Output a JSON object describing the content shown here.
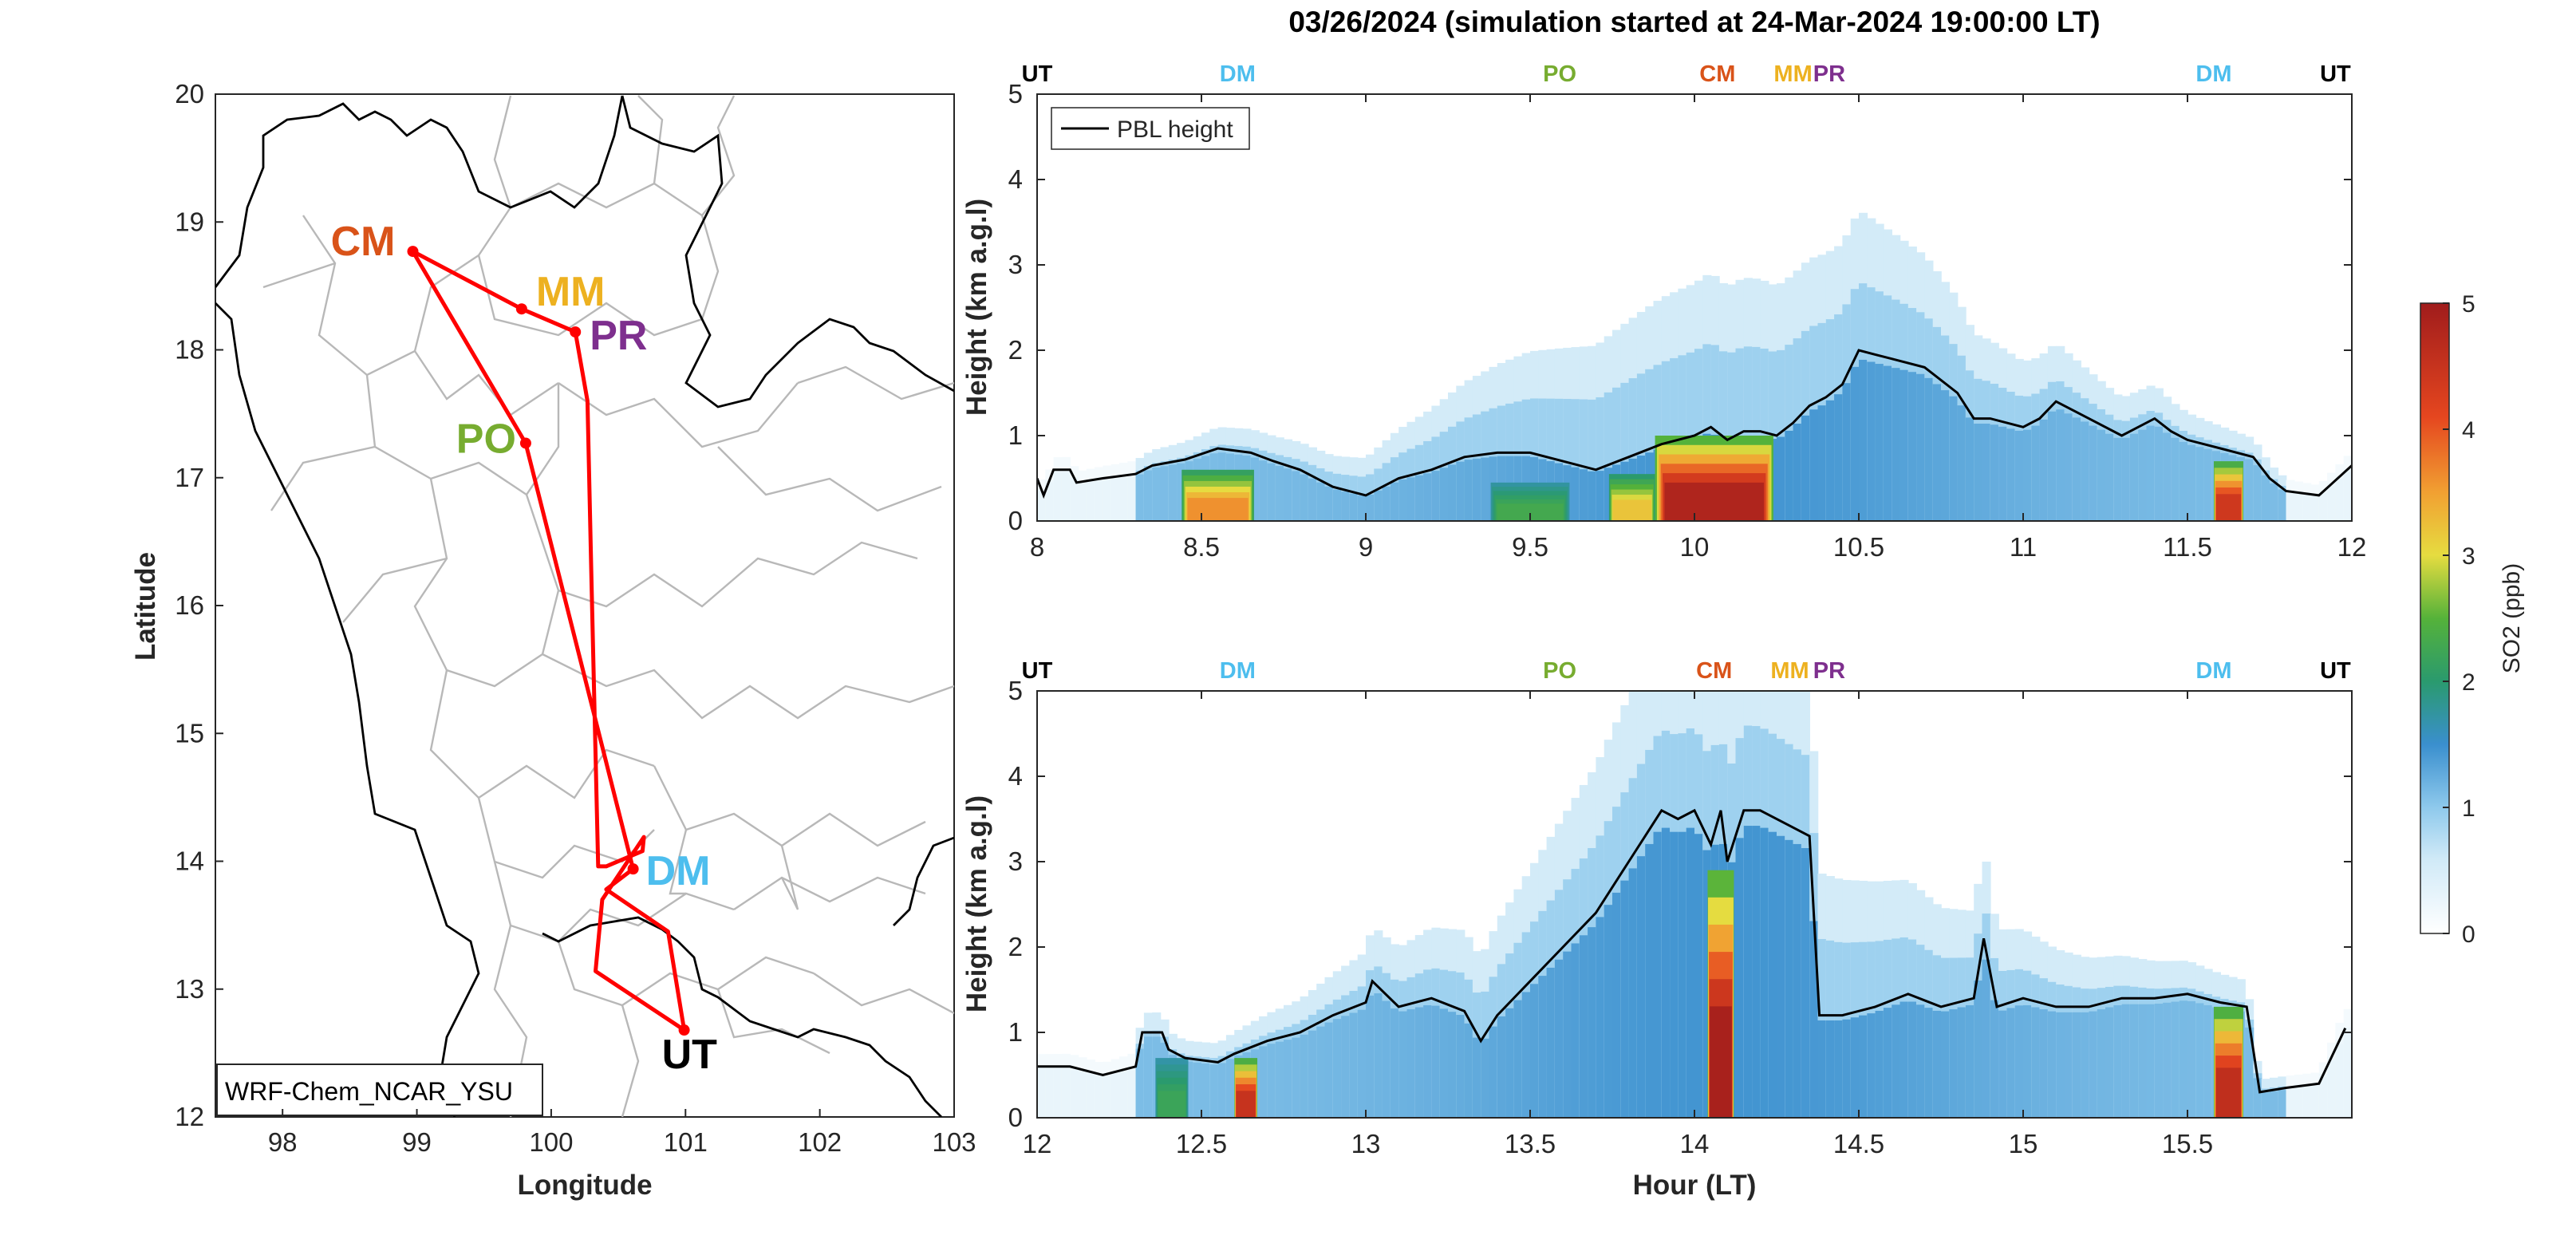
{
  "title": "03/26/2024 (simulation started at 24-Mar-2024 19:00:00 LT)",
  "colors": {
    "CM": "#D95319",
    "MM": "#EDB120",
    "PR": "#7E2F8E",
    "PO": "#77AC30",
    "DM": "#4DBEEE",
    "UT": "#000000",
    "route": "#FF0000",
    "pbl": "#000000"
  },
  "colorbar": {
    "label": "SO2 (ppb)",
    "ticks": [
      "0",
      "1",
      "2",
      "3",
      "4",
      "5"
    ],
    "range": [
      0,
      5
    ]
  },
  "chart_data": [
    {
      "type": "map",
      "model_label": "WRF-Chem_NCAR_YSU",
      "xlabel": "Longitude",
      "ylabel": "Latitude",
      "xlim": [
        97.5,
        103
      ],
      "ylim": [
        12,
        20
      ],
      "xticks": [
        "98",
        "99",
        "100",
        "101",
        "102",
        "103"
      ],
      "yticks": [
        "12",
        "13",
        "14",
        "15",
        "16",
        "17",
        "18",
        "19",
        "20"
      ],
      "stations": [
        {
          "name": "CM",
          "lon": 98.97,
          "lat": 18.77
        },
        {
          "name": "MM",
          "lon": 99.78,
          "lat": 18.32
        },
        {
          "name": "PR",
          "lon": 100.18,
          "lat": 18.14
        },
        {
          "name": "PO",
          "lon": 99.81,
          "lat": 17.27
        },
        {
          "name": "DM",
          "lon": 100.61,
          "lat": 13.94
        },
        {
          "name": "UT",
          "lon": 100.99,
          "lat": 12.68
        }
      ],
      "route": [
        [
          100.99,
          12.68
        ],
        [
          100.87,
          13.45
        ],
        [
          100.41,
          13.78
        ],
        [
          100.61,
          13.94
        ],
        [
          99.81,
          17.27
        ],
        [
          98.97,
          18.77
        ],
        [
          99.78,
          18.32
        ],
        [
          100.18,
          18.14
        ],
        [
          100.27,
          17.6
        ],
        [
          100.3,
          16.2
        ],
        [
          100.35,
          13.96
        ],
        [
          100.41,
          13.96
        ],
        [
          100.68,
          14.08
        ],
        [
          100.69,
          14.19
        ],
        [
          100.38,
          13.7
        ],
        [
          100.33,
          13.14
        ],
        [
          100.99,
          12.68
        ]
      ]
    },
    {
      "type": "heatmap",
      "panel": "top",
      "xlabel": "",
      "ylabel": "Height (km a.g.l)",
      "xlim": [
        8,
        12
      ],
      "ylim": [
        0,
        5
      ],
      "xticks": [
        "8",
        "8.5",
        "9",
        "9.5",
        "10",
        "10.5",
        "11",
        "11.5",
        "12"
      ],
      "yticks": [
        "0",
        "1",
        "2",
        "3",
        "4",
        "5"
      ],
      "legend": "PBL height",
      "station_marks": [
        {
          "name": "UT",
          "x": 8.0
        },
        {
          "name": "DM",
          "x": 8.61
        },
        {
          "name": "PO",
          "x": 9.59
        },
        {
          "name": "CM",
          "x": 10.07
        },
        {
          "name": "MM",
          "x": 10.3
        },
        {
          "name": "PR",
          "x": 10.41
        },
        {
          "name": "DM",
          "x": 11.58
        },
        {
          "name": "UT",
          "x": 11.95
        }
      ],
      "pbl": [
        [
          8,
          0.5
        ],
        [
          8.02,
          0.3
        ],
        [
          8.05,
          0.6
        ],
        [
          8.1,
          0.6
        ],
        [
          8.12,
          0.45
        ],
        [
          8.2,
          0.5
        ],
        [
          8.3,
          0.55
        ],
        [
          8.35,
          0.65
        ],
        [
          8.45,
          0.72
        ],
        [
          8.55,
          0.85
        ],
        [
          8.65,
          0.8
        ],
        [
          8.72,
          0.7
        ],
        [
          8.8,
          0.6
        ],
        [
          8.9,
          0.4
        ],
        [
          9.0,
          0.3
        ],
        [
          9.1,
          0.5
        ],
        [
          9.2,
          0.6
        ],
        [
          9.3,
          0.75
        ],
        [
          9.4,
          0.8
        ],
        [
          9.5,
          0.8
        ],
        [
          9.6,
          0.7
        ],
        [
          9.7,
          0.6
        ],
        [
          9.8,
          0.75
        ],
        [
          9.9,
          0.9
        ],
        [
          10.0,
          1.0
        ],
        [
          10.05,
          1.1
        ],
        [
          10.1,
          0.95
        ],
        [
          10.15,
          1.05
        ],
        [
          10.2,
          1.05
        ],
        [
          10.25,
          1.0
        ],
        [
          10.3,
          1.15
        ],
        [
          10.35,
          1.35
        ],
        [
          10.4,
          1.45
        ],
        [
          10.45,
          1.6
        ],
        [
          10.5,
          2.0
        ],
        [
          10.55,
          1.95
        ],
        [
          10.6,
          1.9
        ],
        [
          10.7,
          1.8
        ],
        [
          10.8,
          1.5
        ],
        [
          10.85,
          1.2
        ],
        [
          10.9,
          1.2
        ],
        [
          11.0,
          1.1
        ],
        [
          11.05,
          1.2
        ],
        [
          11.1,
          1.4
        ],
        [
          11.2,
          1.2
        ],
        [
          11.3,
          1.0
        ],
        [
          11.35,
          1.1
        ],
        [
          11.4,
          1.2
        ],
        [
          11.45,
          1.05
        ],
        [
          11.5,
          0.95
        ],
        [
          11.55,
          0.9
        ],
        [
          11.6,
          0.85
        ],
        [
          11.7,
          0.75
        ],
        [
          11.75,
          0.5
        ],
        [
          11.8,
          0.35
        ],
        [
          11.9,
          0.3
        ],
        [
          12.0,
          0.65
        ]
      ],
      "so2_features": [
        {
          "x0": 8.44,
          "x1": 8.66,
          "z0": 0,
          "z1": 0.6,
          "peak": 3.6
        },
        {
          "x0": 9.38,
          "x1": 9.62,
          "z0": 0,
          "z1": 0.45,
          "peak": 2.3
        },
        {
          "x0": 9.74,
          "x1": 9.88,
          "z0": 0,
          "z1": 0.55,
          "peak": 3.2
        },
        {
          "x0": 9.88,
          "x1": 10.24,
          "z0": 0,
          "z1": 1.0,
          "peak": 4.8
        },
        {
          "x0": 11.58,
          "x1": 11.67,
          "z0": 0,
          "z1": 0.7,
          "peak": 4.4
        }
      ]
    },
    {
      "type": "heatmap",
      "panel": "bottom",
      "xlabel": "Hour (LT)",
      "ylabel": "Height (km a.g.l)",
      "xlim": [
        12,
        16
      ],
      "ylim": [
        0,
        5
      ],
      "xticks": [
        "12",
        "12.5",
        "13",
        "13.5",
        "14",
        "14.5",
        "15",
        "15.5"
      ],
      "yticks": [
        "0",
        "1",
        "2",
        "3",
        "4",
        "5"
      ],
      "station_marks": [
        {
          "name": "UT",
          "x": 12.0
        },
        {
          "name": "DM",
          "x": 12.61
        },
        {
          "name": "PO",
          "x": 13.59
        },
        {
          "name": "CM",
          "x": 14.06
        },
        {
          "name": "MM",
          "x": 14.29
        },
        {
          "name": "PR",
          "x": 14.41
        },
        {
          "name": "DM",
          "x": 15.58
        },
        {
          "name": "UT",
          "x": 15.95
        }
      ],
      "pbl": [
        [
          12,
          0.6
        ],
        [
          12.1,
          0.6
        ],
        [
          12.2,
          0.5
        ],
        [
          12.3,
          0.6
        ],
        [
          12.32,
          1.0
        ],
        [
          12.38,
          1.0
        ],
        [
          12.4,
          0.8
        ],
        [
          12.45,
          0.7
        ],
        [
          12.55,
          0.65
        ],
        [
          12.6,
          0.75
        ],
        [
          12.7,
          0.9
        ],
        [
          12.8,
          1.0
        ],
        [
          12.9,
          1.2
        ],
        [
          13.0,
          1.35
        ],
        [
          13.02,
          1.6
        ],
        [
          13.1,
          1.3
        ],
        [
          13.2,
          1.4
        ],
        [
          13.3,
          1.25
        ],
        [
          13.35,
          0.9
        ],
        [
          13.4,
          1.2
        ],
        [
          13.5,
          1.6
        ],
        [
          13.6,
          2.0
        ],
        [
          13.7,
          2.4
        ],
        [
          13.8,
          3.0
        ],
        [
          13.85,
          3.3
        ],
        [
          13.9,
          3.6
        ],
        [
          13.95,
          3.5
        ],
        [
          14.0,
          3.6
        ],
        [
          14.05,
          3.2
        ],
        [
          14.08,
          3.6
        ],
        [
          14.1,
          3.0
        ],
        [
          14.15,
          3.6
        ],
        [
          14.2,
          3.6
        ],
        [
          14.3,
          3.4
        ],
        [
          14.35,
          3.3
        ],
        [
          14.38,
          1.2
        ],
        [
          14.45,
          1.2
        ],
        [
          14.55,
          1.3
        ],
        [
          14.65,
          1.45
        ],
        [
          14.75,
          1.3
        ],
        [
          14.85,
          1.4
        ],
        [
          14.88,
          2.1
        ],
        [
          14.92,
          1.3
        ],
        [
          15.0,
          1.4
        ],
        [
          15.1,
          1.3
        ],
        [
          15.2,
          1.3
        ],
        [
          15.3,
          1.4
        ],
        [
          15.4,
          1.4
        ],
        [
          15.5,
          1.45
        ],
        [
          15.6,
          1.35
        ],
        [
          15.68,
          1.3
        ],
        [
          15.72,
          0.3
        ],
        [
          15.8,
          0.35
        ],
        [
          15.9,
          0.4
        ],
        [
          15.98,
          1.05
        ]
      ],
      "so2_features": [
        {
          "x0": 12.36,
          "x1": 12.46,
          "z0": 0,
          "z1": 0.7,
          "peak": 2.2
        },
        {
          "x0": 12.6,
          "x1": 12.67,
          "z0": 0,
          "z1": 0.7,
          "peak": 4.5
        },
        {
          "x0": 14.04,
          "x1": 14.12,
          "z0": 0,
          "z1": 2.9,
          "peak": 4.9
        },
        {
          "x0": 15.58,
          "x1": 15.67,
          "z0": 0,
          "z1": 1.3,
          "peak": 4.6
        }
      ]
    }
  ]
}
